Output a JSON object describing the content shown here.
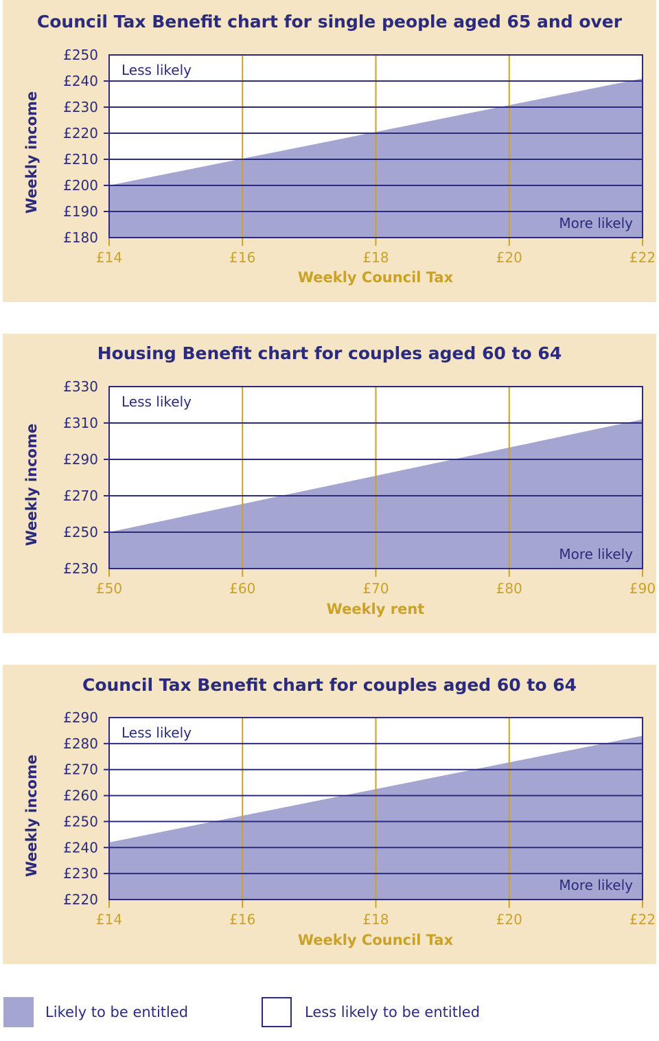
{
  "colors": {
    "panel_bg": "#f6e5c4",
    "likely_fill": "#a4a5d1",
    "navy": "#2b2b7e",
    "gold": "#c9a227"
  },
  "region_labels": {
    "less": "Less likely",
    "more": "More likely"
  },
  "legend": {
    "likely": "Likely to be entitled",
    "less_likely": "Less likely to be entitled"
  },
  "chart_data": [
    {
      "type": "area",
      "title": "Council Tax Benefit chart for single people aged 65 and over",
      "xlabel": "Weekly Council Tax",
      "ylabel": "Weekly income",
      "x_ticks": [
        "£14",
        "£16",
        "£18",
        "£20",
        "£22"
      ],
      "y_ticks": [
        "£180",
        "£190",
        "£200",
        "£210",
        "£220",
        "£230",
        "£240",
        "£250"
      ],
      "xlim": [
        14,
        22
      ],
      "ylim": [
        180,
        250
      ],
      "x_tick_values": [
        14,
        16,
        18,
        20,
        22
      ],
      "y_tick_values": [
        180,
        190,
        200,
        210,
        220,
        230,
        240,
        250
      ],
      "boundary": [
        {
          "x": 14,
          "y": 200
        },
        {
          "x": 22,
          "y": 241
        }
      ],
      "grid": true
    },
    {
      "type": "area",
      "title": "Housing Benefit chart for couples aged 60 to 64",
      "xlabel": "Weekly rent",
      "ylabel": "Weekly income",
      "x_ticks": [
        "£50",
        "£60",
        "£70",
        "£80",
        "£90"
      ],
      "y_ticks": [
        "£230",
        "£250",
        "£270",
        "£290",
        "£310",
        "£330"
      ],
      "xlim": [
        50,
        90
      ],
      "ylim": [
        230,
        330
      ],
      "x_tick_values": [
        50,
        60,
        70,
        80,
        90
      ],
      "y_tick_values": [
        230,
        250,
        270,
        290,
        310,
        330
      ],
      "boundary": [
        {
          "x": 50,
          "y": 250
        },
        {
          "x": 90,
          "y": 312
        }
      ],
      "grid": true
    },
    {
      "type": "area",
      "title": "Council Tax Benefit chart for couples aged 60 to 64",
      "xlabel": "Weekly Council Tax",
      "ylabel": "Weekly income",
      "x_ticks": [
        "£14",
        "£16",
        "£18",
        "£20",
        "£22"
      ],
      "y_ticks": [
        "£220",
        "£230",
        "£240",
        "£250",
        "£260",
        "£270",
        "£280",
        "£290"
      ],
      "xlim": [
        14,
        22
      ],
      "ylim": [
        220,
        290
      ],
      "x_tick_values": [
        14,
        16,
        18,
        20,
        22
      ],
      "y_tick_values": [
        220,
        230,
        240,
        250,
        260,
        270,
        280,
        290
      ],
      "boundary": [
        {
          "x": 14,
          "y": 242
        },
        {
          "x": 22,
          "y": 283
        }
      ],
      "grid": true
    }
  ]
}
